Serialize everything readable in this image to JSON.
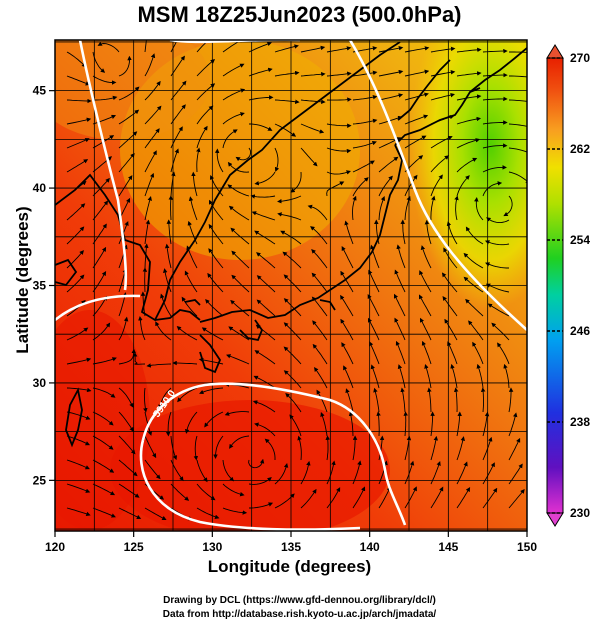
{
  "title": "MSM 18Z25Jun2023 (500.0hPa)",
  "x_axis": {
    "label": "Longitude (degrees)",
    "ticks": [
      "120",
      "125",
      "130",
      "135",
      "140",
      "145",
      "150"
    ],
    "range": [
      120,
      150
    ]
  },
  "y_axis": {
    "label": "Latitude  (degrees)",
    "ticks": [
      "25",
      "30",
      "35",
      "40",
      "45"
    ],
    "range": [
      22.4,
      47.6
    ]
  },
  "colorbar": {
    "ticks": [
      "270",
      "262",
      "254",
      "246",
      "238",
      "230"
    ],
    "range": [
      230,
      270
    ],
    "colors": [
      "#e030d0",
      "#6010c0",
      "#2030e0",
      "#00a0f0",
      "#00d0a0",
      "#20d020",
      "#b0e000",
      "#f0e000",
      "#f8a020",
      "#f05010",
      "#e82000"
    ]
  },
  "contour_label": "5910.0",
  "credits": {
    "line1": "Drawing by DCL (https://www.gfd-dennou.org/library/dcl/)",
    "line2": "Data from http://database.rish.kyoto-u.ac.jp/arch/jmadata/"
  }
}
